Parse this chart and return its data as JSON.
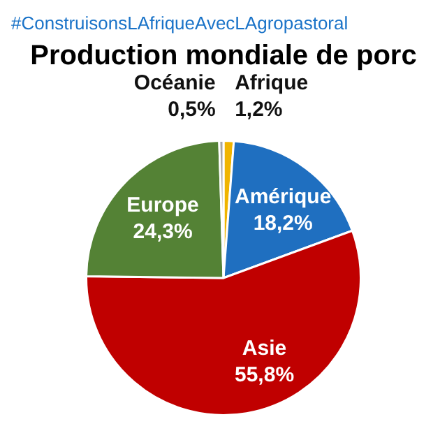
{
  "chart_data": {
    "type": "pie",
    "title": "Production mondiale de porc",
    "annotations": [
      "#ConstruisonsLAfriqueAvecLAgropastoral"
    ],
    "categories": [
      "Afrique",
      "Amérique",
      "Asie",
      "Europe",
      "Océanie"
    ],
    "values": [
      1.2,
      18.2,
      55.8,
      24.3,
      0.5
    ],
    "value_labels": [
      "1,2%",
      "18,2%",
      "55,8%",
      "24,3%",
      "0,5%"
    ],
    "colors": [
      "#f0b400",
      "#1f6fc0",
      "#c00000",
      "#548235",
      "#a5a5a5"
    ],
    "legend": false
  }
}
